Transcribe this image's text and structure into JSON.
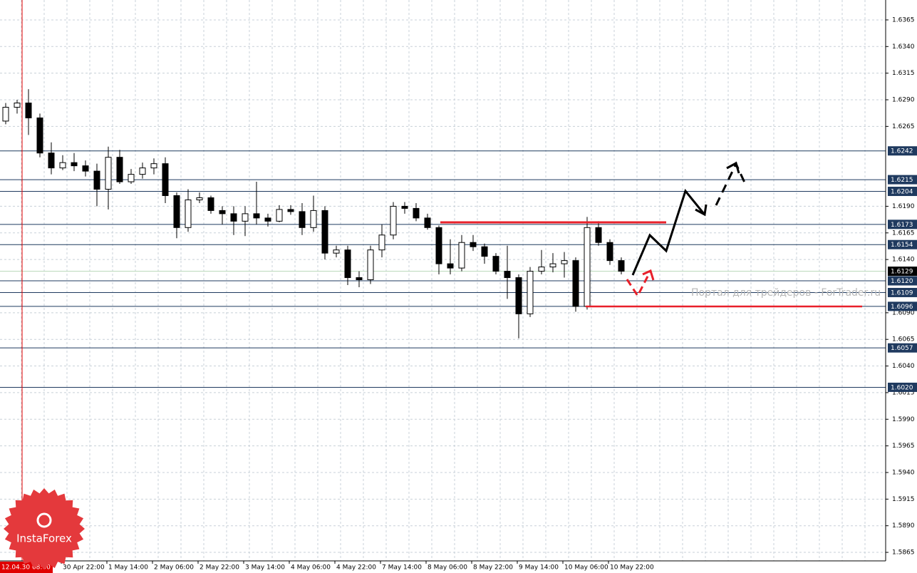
{
  "chart_data": {
    "type": "candlestick",
    "open": [
      1.627,
      1.6283,
      1.6287,
      1.6273,
      1.624,
      1.6226,
      1.6231,
      1.6228,
      1.6223,
      1.6206,
      1.6236,
      1.6213,
      1.622,
      1.6226,
      1.623,
      1.62,
      1.617,
      1.6196,
      1.6198,
      1.6186,
      1.6183,
      1.6176,
      1.6183,
      1.6179,
      1.6176,
      1.6187,
      1.6185,
      1.617,
      1.6186,
      1.6146,
      1.6149,
      1.6123,
      1.6121,
      1.6149,
      1.6163,
      1.619,
      1.6188,
      1.6179,
      1.617,
      1.6136,
      1.6132,
      1.6156,
      1.6152,
      1.6143,
      1.6129,
      1.6123,
      1.6089,
      1.6129,
      1.6133,
      1.6136,
      1.6139,
      1.6096,
      1.617,
      1.6156,
      1.6139
    ],
    "high": [
      1.6287,
      1.629,
      1.63,
      1.6277,
      1.625,
      1.6238,
      1.624,
      1.6233,
      1.623,
      1.6246,
      1.6243,
      1.6225,
      1.6231,
      1.6235,
      1.6236,
      1.6203,
      1.6206,
      1.6203,
      1.62,
      1.619,
      1.619,
      1.619,
      1.6213,
      1.6183,
      1.6191,
      1.6191,
      1.6193,
      1.62,
      1.619,
      1.6153,
      1.6153,
      1.6129,
      1.6153,
      1.6173,
      1.6194,
      1.6194,
      1.6193,
      1.6183,
      1.6172,
      1.6159,
      1.6163,
      1.6163,
      1.6155,
      1.6146,
      1.6153,
      1.6126,
      1.6133,
      1.6149,
      1.6146,
      1.6147,
      1.6142,
      1.618,
      1.6176,
      1.6159,
      1.6142
    ],
    "low": [
      1.6267,
      1.6277,
      1.6257,
      1.6236,
      1.622,
      1.6224,
      1.6223,
      1.6218,
      1.619,
      1.6187,
      1.6211,
      1.6211,
      1.6216,
      1.622,
      1.6193,
      1.616,
      1.6166,
      1.6193,
      1.6183,
      1.6173,
      1.6163,
      1.6162,
      1.6173,
      1.6171,
      1.6175,
      1.6182,
      1.6163,
      1.6166,
      1.614,
      1.6142,
      1.6116,
      1.6114,
      1.6117,
      1.6142,
      1.6159,
      1.6183,
      1.6176,
      1.6168,
      1.6126,
      1.6126,
      1.6129,
      1.6148,
      1.6136,
      1.6126,
      1.6103,
      1.6066,
      1.6086,
      1.6126,
      1.6128,
      1.6123,
      1.6091,
      1.6093,
      1.6153,
      1.6135,
      1.6126
    ],
    "close": [
      1.6283,
      1.6287,
      1.6273,
      1.624,
      1.6226,
      1.6231,
      1.6228,
      1.6223,
      1.6206,
      1.6236,
      1.6213,
      1.622,
      1.6226,
      1.623,
      1.62,
      1.617,
      1.6196,
      1.6198,
      1.6186,
      1.6183,
      1.6176,
      1.6183,
      1.6179,
      1.6176,
      1.6187,
      1.6185,
      1.617,
      1.6186,
      1.6146,
      1.6149,
      1.6123,
      1.6121,
      1.6149,
      1.6163,
      1.619,
      1.6188,
      1.6179,
      1.617,
      1.6136,
      1.6132,
      1.6156,
      1.6152,
      1.6143,
      1.6129,
      1.6123,
      1.6089,
      1.6129,
      1.6133,
      1.6136,
      1.6139,
      1.6096,
      1.617,
      1.6156,
      1.6139,
      1.6129
    ],
    "xlabels": [
      "30 Apr 22:00",
      "1 May 14:00",
      "2 May 06:00",
      "2 May 22:00",
      "3 May 14:00",
      "4 May 06:00",
      "4 May 22:00",
      "7 May 14:00",
      "8 May 06:00",
      "8 May 22:00",
      "9 May 14:00",
      "10 May 06:00",
      "10 May 22:00"
    ],
    "cursor_time": "12.04.30 08:00",
    "ylim": [
      1.5857,
      1.63837
    ],
    "yticks": [
      1.6365,
      {
        "value": 1.634,
        "label": "1.6340"
      },
      1.6315,
      {
        "value": 1.629,
        "label": "1.6290"
      },
      1.6265,
      {
        "value": 1.619,
        "label": "1.6190"
      },
      1.6165,
      {
        "value": 1.614,
        "label": "1.6140"
      },
      {
        "value": 1.609,
        "label": "1.6090"
      },
      1.6065,
      {
        "value": 1.604,
        "label": "1.6040"
      },
      1.6015,
      {
        "value": 1.599,
        "label": "1.5990"
      },
      1.5965,
      {
        "value": 1.594,
        "label": "1.5940"
      },
      1.5915,
      {
        "value": 1.589,
        "label": "1.5890"
      },
      1.5865
    ],
    "levels": [
      1.6242,
      1.6215,
      1.6204,
      1.6173,
      1.6154,
      {
        "value": 1.612,
        "label": "1.6120"
      },
      1.6109,
      1.6096,
      1.6057,
      {
        "value": 1.602,
        "label": "1.6020"
      }
    ],
    "last_price": 1.6129,
    "grid": true,
    "color": "#000000",
    "level_color": "#1f3a5f",
    "watermark": "Портал для трейдеров - ForTrader.ru",
    "logo": "InstaForex"
  }
}
